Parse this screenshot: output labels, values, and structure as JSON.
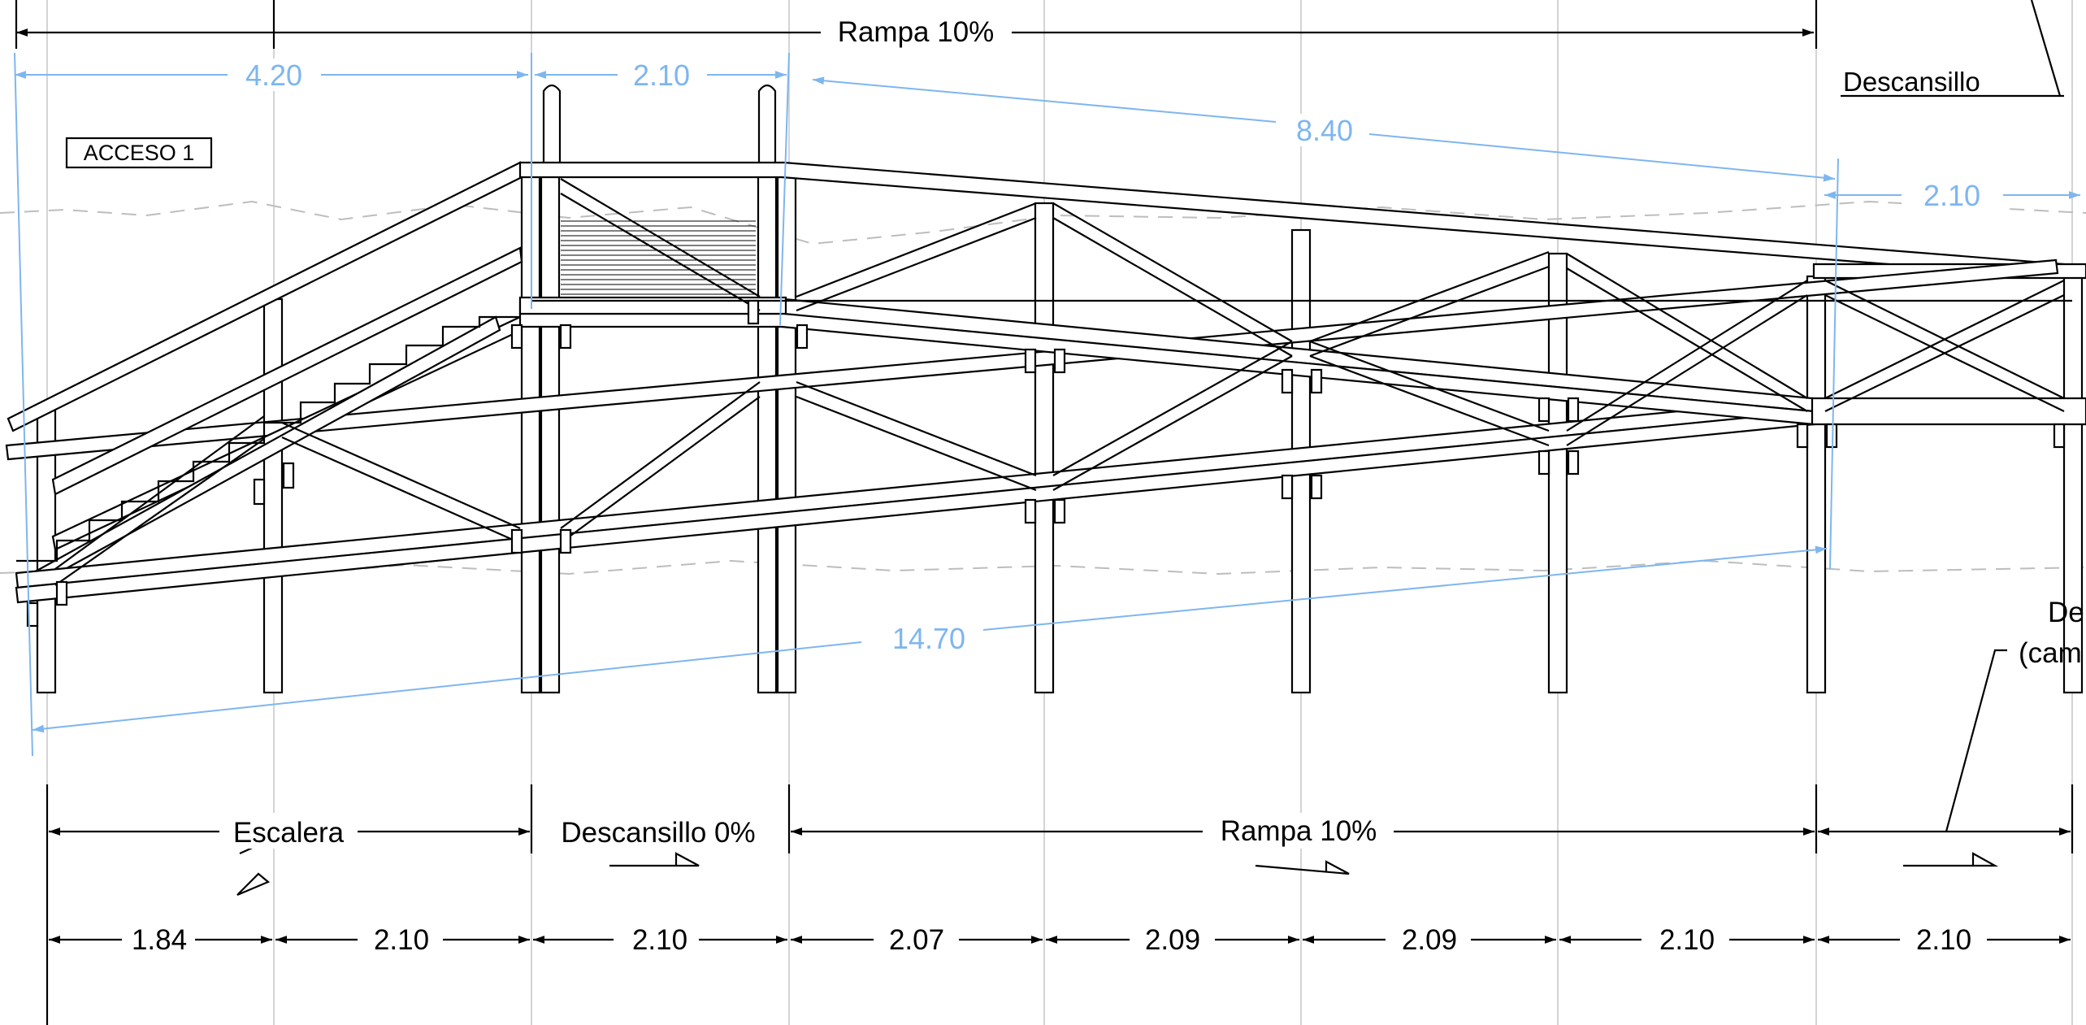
{
  "drawing": {
    "labels": {
      "access": "ACCESO 1",
      "top_ramp": "Rampa 10%",
      "top_landing": "Descansillo",
      "right_cut": "De",
      "right_cut_paren": "(cam"
    },
    "top_dimensions": [
      "4.20",
      "2.10",
      "8.40",
      "2.10"
    ],
    "diagonal_dimension": "14.70",
    "section_labels": [
      "Escalera",
      "Descansillo 0%",
      "Rampa 10%"
    ],
    "bottom_dimensions": [
      "1.84",
      "2.10",
      "2.10",
      "2.07",
      "2.09",
      "2.09",
      "2.10",
      "2.10"
    ],
    "colors": {
      "linework": "#000000",
      "dimension_blue": "#7eb6ef",
      "grid_gray": "#c9c9c9",
      "background": "#ffffff"
    }
  }
}
